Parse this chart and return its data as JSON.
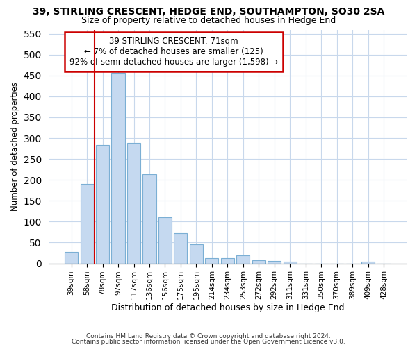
{
  "title1": "39, STIRLING CRESCENT, HEDGE END, SOUTHAMPTON, SO30 2SA",
  "title2": "Size of property relative to detached houses in Hedge End",
  "xlabel": "Distribution of detached houses by size in Hedge End",
  "ylabel": "Number of detached properties",
  "categories": [
    "39sqm",
    "58sqm",
    "78sqm",
    "97sqm",
    "117sqm",
    "136sqm",
    "156sqm",
    "175sqm",
    "195sqm",
    "214sqm",
    "234sqm",
    "253sqm",
    "272sqm",
    "292sqm",
    "311sqm",
    "331sqm",
    "350sqm",
    "370sqm",
    "389sqm",
    "409sqm",
    "428sqm"
  ],
  "values": [
    28,
    191,
    284,
    457,
    288,
    213,
    110,
    73,
    46,
    12,
    12,
    20,
    8,
    6,
    5,
    0,
    0,
    0,
    0,
    5,
    0
  ],
  "bar_color": "#c5d9f0",
  "bar_edge_color": "#7bafd4",
  "vline_x_pos": 2.0,
  "vline_color": "#cc0000",
  "annotation_text": "39 STIRLING CRESCENT: 71sqm\n← 7% of detached houses are smaller (125)\n92% of semi-detached houses are larger (1,598) →",
  "annotation_box_color": "#ffffff",
  "annotation_box_edge_color": "#cc0000",
  "ylim": [
    0,
    560
  ],
  "yticks": [
    0,
    50,
    100,
    150,
    200,
    250,
    300,
    350,
    400,
    450,
    500,
    550
  ],
  "footnote1": "Contains HM Land Registry data © Crown copyright and database right 2024.",
  "footnote2": "Contains public sector information licensed under the Open Government Licence v3.0.",
  "background_color": "#ffffff",
  "plot_background_color": "#ffffff",
  "grid_color": "#c8d8ec"
}
